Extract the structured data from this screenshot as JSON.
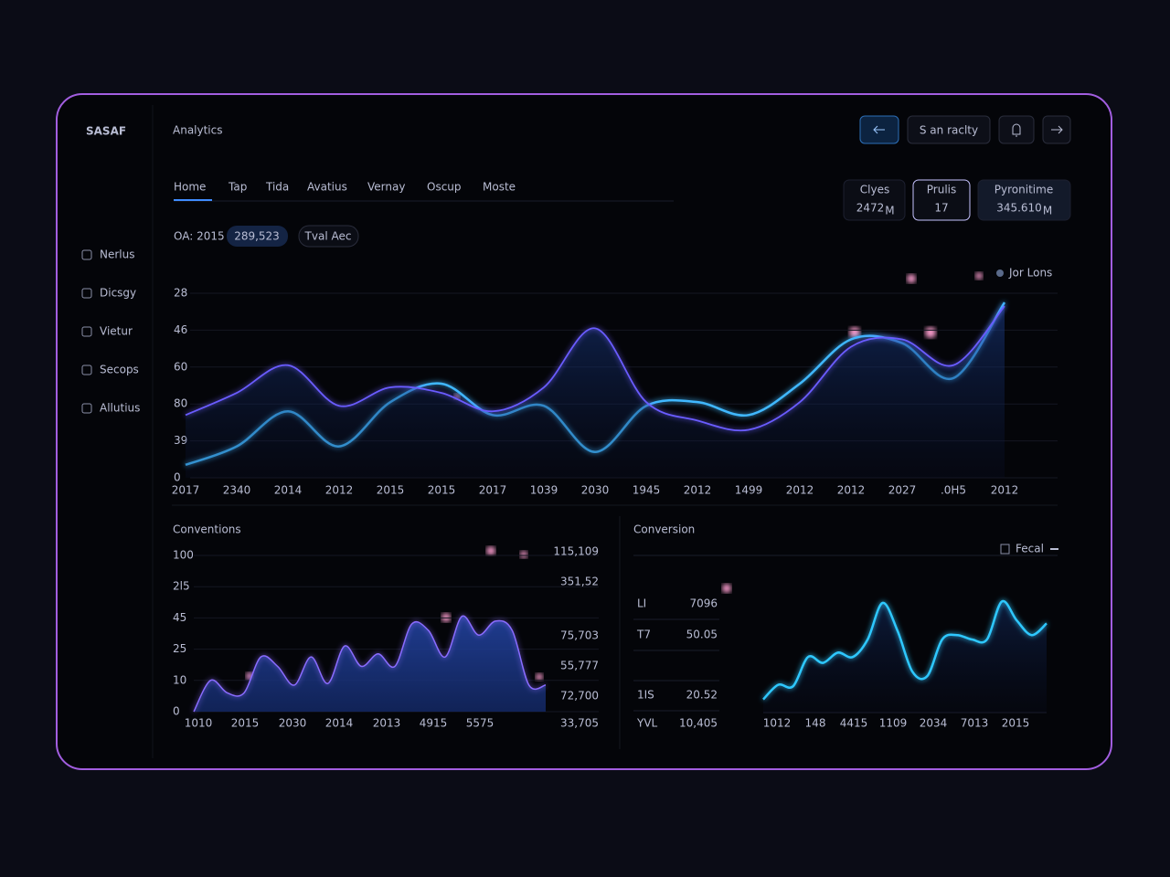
{
  "brand": "SASAF",
  "header": {
    "title": "Analytics"
  },
  "toolbar": {
    "search": "S an raclty"
  },
  "sidebar": [
    "Nerlus",
    "Dicsgy",
    "Vietur",
    "Secops",
    "Allutius"
  ],
  "tabs": [
    "Home",
    "Tap",
    "Tida",
    "Avatius",
    "Vernay",
    "Oscup",
    "Moste"
  ],
  "stats": [
    {
      "label": "Clyes",
      "value": "2472",
      "unit": "M"
    },
    {
      "label": "Prulis",
      "value": "17"
    },
    {
      "label": "Pyronitime",
      "value": "345.610",
      "unit": "M"
    }
  ],
  "filters": [
    "OA: 2015",
    "289,523",
    "Tval Aec"
  ],
  "main_chart": {
    "type": "line",
    "legend": "Jor Lons",
    "ylabels": [
      "28",
      "46",
      "60",
      "80",
      "39",
      "0"
    ],
    "categories": [
      "2017",
      "2340",
      "2014",
      "2012",
      "2015",
      "2015",
      "2017",
      "1039",
      "2030",
      "1945",
      "2012",
      "1499",
      "2012",
      "2012",
      "2027",
      ".0H5",
      "2012"
    ],
    "ylim": [
      0,
      100
    ],
    "series": [
      {
        "color": "#3fb8ff",
        "values": [
          7,
          17,
          36,
          17,
          41,
          51,
          34,
          39,
          14,
          39,
          41,
          34,
          51,
          75,
          73,
          54,
          95
        ]
      },
      {
        "color": "#6a5cff",
        "values": [
          34,
          46,
          61,
          39,
          49,
          46,
          36,
          49,
          81,
          41,
          31,
          26,
          41,
          71,
          75,
          61,
          93
        ]
      }
    ]
  },
  "conventions": {
    "type": "area",
    "title": "Conventions",
    "ylabels": [
      "100",
      "2l5",
      "45",
      "25",
      "10",
      "0"
    ],
    "right_labels": [
      "115,109",
      "351,52",
      "75,703",
      "55,777",
      "72,700",
      "33,705"
    ],
    "xlabels": [
      "1010",
      "2015",
      "2030",
      "2014",
      "2013",
      "4915",
      "5575"
    ],
    "ylim": [
      0,
      100
    ],
    "color": "#8a6cff",
    "values": [
      0,
      20,
      12,
      12,
      35,
      29,
      17,
      35,
      18,
      42,
      29,
      37,
      29,
      56,
      52,
      35,
      61,
      49,
      58,
      52,
      17,
      17
    ]
  },
  "conversion": {
    "type": "line",
    "title": "Conversion",
    "legend": "Fecal",
    "table": [
      [
        "LI",
        "7096"
      ],
      [
        "T7",
        "50.05"
      ],
      [
        "1IS",
        "20.52"
      ],
      [
        "YVL",
        "10,405"
      ]
    ],
    "xlabels": [
      "1012",
      "148",
      "4415",
      "1109",
      "2034",
      "7013",
      "2015"
    ],
    "ylim": [
      0,
      100
    ],
    "color": "#2fc8ff",
    "values": [
      9,
      19,
      18,
      38,
      34,
      41,
      38,
      50,
      75,
      56,
      28,
      25,
      50,
      53,
      50,
      50,
      76,
      63,
      53,
      61
    ]
  }
}
